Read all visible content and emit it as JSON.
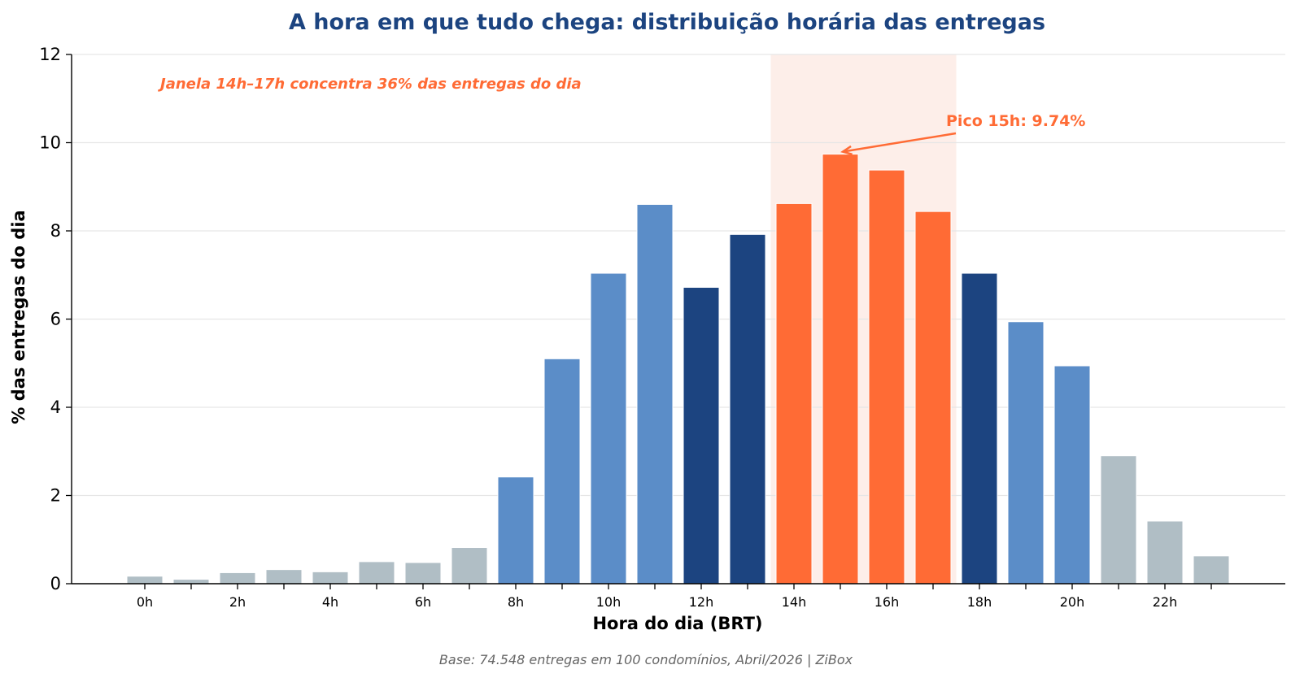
{
  "chart_data": {
    "type": "bar",
    "title": "A hora em que tudo chega: distribuição horária das entregas",
    "xlabel": "Hora do dia (BRT)",
    "ylabel": "% das entregas do dia",
    "ylim": [
      0,
      12
    ],
    "yticks": [
      "0",
      "2",
      "4",
      "6",
      "8",
      "10",
      "12"
    ],
    "xtick_labels": [
      "0h",
      "",
      "2h",
      "",
      "4h",
      "",
      "6h",
      "",
      "8h",
      "",
      "10h",
      "",
      "12h",
      "",
      "14h",
      "",
      "16h",
      "",
      "18h",
      "",
      "20h",
      "",
      "22h",
      ""
    ],
    "hours": [
      0,
      1,
      2,
      3,
      4,
      5,
      6,
      7,
      8,
      9,
      10,
      11,
      12,
      13,
      14,
      15,
      16,
      17,
      18,
      19,
      20,
      21,
      22,
      23
    ],
    "values": [
      0.17,
      0.1,
      0.25,
      0.32,
      0.27,
      0.5,
      0.48,
      0.82,
      2.42,
      5.1,
      7.04,
      8.6,
      6.72,
      7.92,
      8.62,
      9.74,
      9.38,
      8.44,
      7.04,
      5.94,
      4.94,
      2.9,
      1.42,
      0.63
    ],
    "bar_colors": [
      "#b0bec5",
      "#b0bec5",
      "#b0bec5",
      "#b0bec5",
      "#b0bec5",
      "#b0bec5",
      "#b0bec5",
      "#b0bec5",
      "#5b8dc8",
      "#5b8dc8",
      "#5b8dc8",
      "#5b8dc8",
      "#1c4480",
      "#1c4480",
      "#ff6b35",
      "#ff6b35",
      "#ff6b35",
      "#ff6b35",
      "#1c4480",
      "#5b8dc8",
      "#5b8dc8",
      "#b0bec5",
      "#b0bec5",
      "#b0bec5"
    ],
    "highlight_window": {
      "from_hour": 14,
      "to_hour": 17,
      "color": "#fdeee9"
    },
    "annotations": {
      "window_note": "Janela 14h–17h concentra 36% das entregas do dia",
      "peak_label": "Pico 15h: 9.74%",
      "peak_hour": 15,
      "peak_value": 9.74
    },
    "grid": "horizontal",
    "colors": {
      "title": "#1c4480",
      "accent": "#ff6b35",
      "grid": "#e6e6e6"
    }
  },
  "footer": "Base: 74.548 entregas em 100 condomínios, Abril/2026 | ZiBox"
}
